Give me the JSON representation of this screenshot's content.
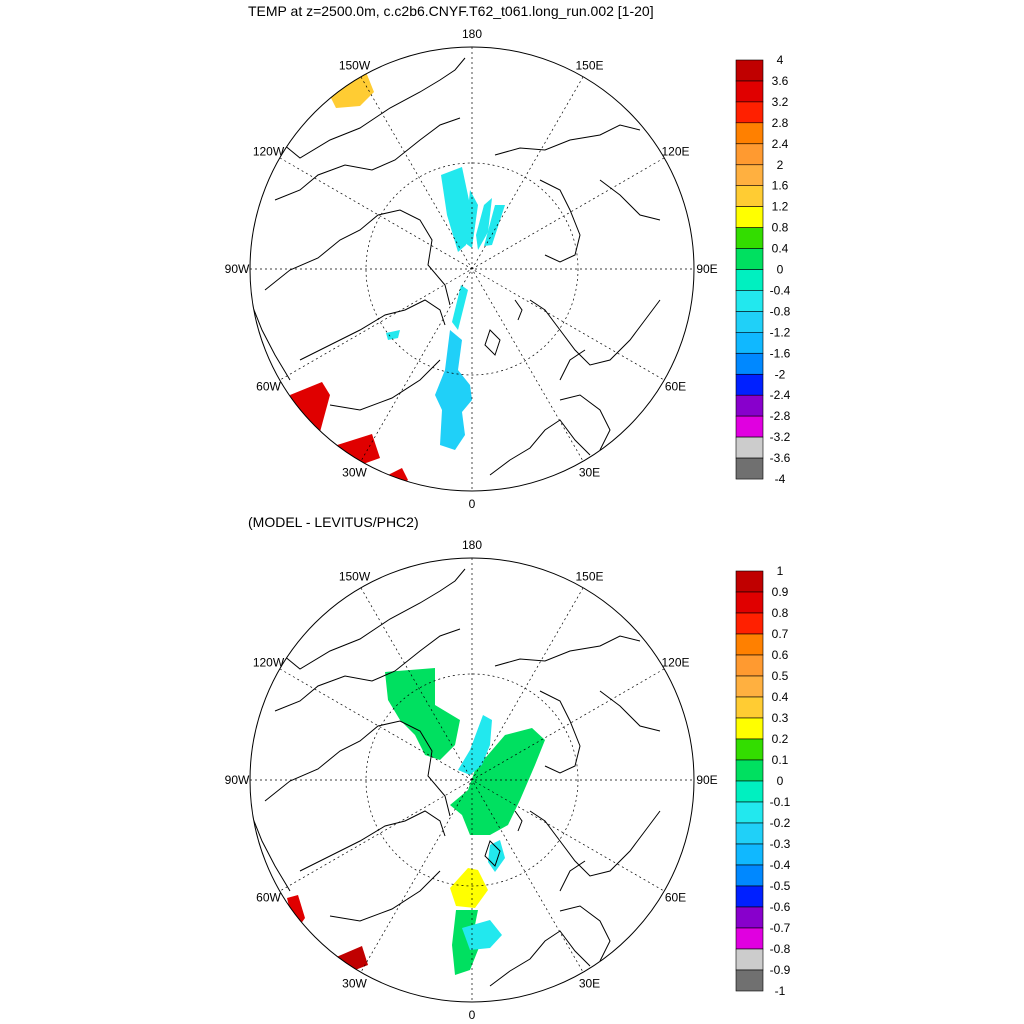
{
  "page": {
    "title_top": "TEMP at z=2500.0m, c.c2b6.CNYF.T62_t061.long_run.002 [1-20]",
    "title_bottom": "(MODEL - LEVITUS/PHC2)"
  },
  "chart_data": [
    {
      "type": "polar-map",
      "title": "TEMP at z=2500.0m, c.c2b6.CNYF.T62_t061.long_run.002 [1-20]",
      "projection": "north polar stereographic",
      "longitude_labels": [
        "180",
        "150E",
        "120E",
        "90E",
        "60E",
        "30E",
        "0",
        "30W",
        "60W",
        "90W",
        "120W",
        "150W"
      ],
      "colorbar": {
        "labels": [
          "4",
          "3.6",
          "3.2",
          "2.8",
          "2.4",
          "2",
          "1.6",
          "1.2",
          "0.8",
          "0.4",
          "0",
          "-0.4",
          "-0.8",
          "-1.2",
          "-1.6",
          "-2",
          "-2.4",
          "-2.8",
          "-3.2",
          "-3.6",
          "-4"
        ],
        "colors": [
          "#c00000",
          "#e00000",
          "#ff2000",
          "#ff8000",
          "#ff9a30",
          "#ffb040",
          "#ffcc33",
          "#ffff00",
          "#33dd00",
          "#00e060",
          "#00f0c0",
          "#22e8ee",
          "#20d0f8",
          "#10b8ff",
          "#0088ff",
          "#0020ff",
          "#8800cc",
          "#e000e0",
          "#cccccc",
          "#707070"
        ]
      },
      "shaded_regions": [
        {
          "location": "central Arctic, toward 150W-180",
          "color": "#22e8ee",
          "value_range": [
            -0.4,
            0
          ]
        },
        {
          "location": "near pole toward 15W",
          "color": "#22e8ee",
          "value_range": [
            -0.4,
            0
          ]
        },
        {
          "location": "Fram Strait / Greenland Sea",
          "color": "#20d0f8",
          "value_range": [
            -0.8,
            -0.4
          ]
        },
        {
          "location": "northwest Atlantic near 60W",
          "color": "#e00000",
          "value_range": [
            3.2,
            4
          ]
        },
        {
          "location": "north Atlantic near 30W",
          "color": "#e00000",
          "value_range": [
            3.2,
            4
          ]
        },
        {
          "location": "north Pacific near 150W",
          "color": "#ffcc33",
          "value_range": [
            1.2,
            1.6
          ]
        }
      ]
    },
    {
      "type": "polar-map",
      "title": "(MODEL - LEVITUS/PHC2)",
      "projection": "north polar stereographic",
      "longitude_labels": [
        "180",
        "150E",
        "120E",
        "90E",
        "60E",
        "30E",
        "0",
        "30W",
        "60W",
        "90W",
        "120W",
        "150W"
      ],
      "colorbar": {
        "labels": [
          "1",
          "0.9",
          "0.8",
          "0.7",
          "0.6",
          "0.5",
          "0.4",
          "0.3",
          "0.2",
          "0.1",
          "0",
          "-0.1",
          "-0.2",
          "-0.3",
          "-0.4",
          "-0.5",
          "-0.6",
          "-0.7",
          "-0.8",
          "-0.9",
          "-1"
        ],
        "colors": [
          "#c00000",
          "#e00000",
          "#ff2000",
          "#ff8000",
          "#ff9a30",
          "#ffb040",
          "#ffcc33",
          "#ffff00",
          "#33dd00",
          "#00e060",
          "#00f0c0",
          "#22e8ee",
          "#20d0f8",
          "#10b8ff",
          "#0088ff",
          "#0020ff",
          "#8800cc",
          "#e000e0",
          "#cccccc",
          "#707070"
        ]
      },
      "shaded_regions": [
        {
          "location": "Canada Basin (120W-150W)",
          "color": "#00e060",
          "value_range": [
            0,
            0.1
          ]
        },
        {
          "location": "Eurasian Basin (60E-120E)",
          "color": "#00e060",
          "value_range": [
            0,
            0.1
          ]
        },
        {
          "location": "near pole between 90E-150E",
          "color": "#22e8ee",
          "value_range": [
            -0.1,
            0
          ]
        },
        {
          "location": "north of Svalbard",
          "color": "#22e8ee",
          "value_range": [
            -0.1,
            0
          ]
        },
        {
          "location": "Fram Strait",
          "color": "#ffff00",
          "value_range": [
            0.3,
            0.4
          ]
        },
        {
          "location": "Greenland Sea",
          "color": "#00e060",
          "value_range": [
            0,
            0.1
          ]
        },
        {
          "location": "northwest Atlantic near 60W",
          "color": "#e00000",
          "value_range": [
            0.8,
            1
          ]
        },
        {
          "location": "north Atlantic near 30W",
          "color": "#c00000",
          "value_range": [
            0.8,
            1
          ]
        }
      ]
    }
  ]
}
